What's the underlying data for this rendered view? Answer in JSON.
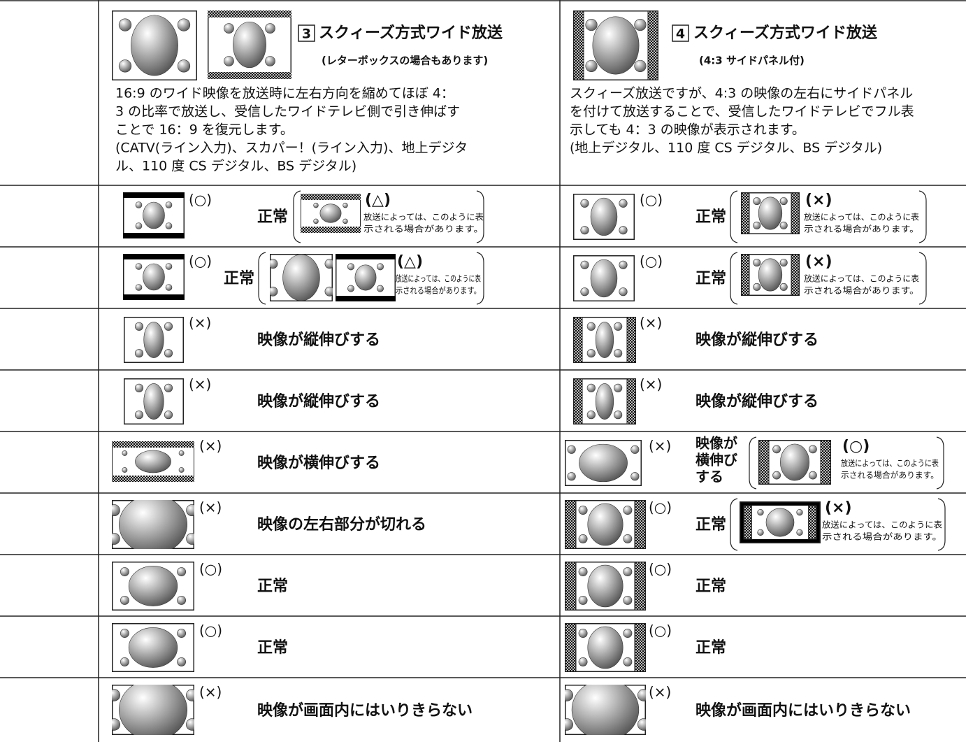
{
  "header": {
    "col3": {
      "number": "3",
      "title": "スクィーズ方式ワイド放送",
      "subtitle": "(レターボックスの場合もあります)",
      "description": [
        "16:9 のワイド映像を放送時に左右方向を縮めてほぼ 4：",
        "3 の比率で放送し、受信したワイドテレビ側で引き伸ばす",
        "ことで 16：9 を復元します。",
        "(CATV(ライン入力)、スカパー！(ライン入力)、地上デジタ",
        "ル、110 度 CS デジタル、BS デジタル)"
      ]
    },
    "col4": {
      "number": "4",
      "title": "スクィーズ方式ワイド放送",
      "subtitle": "(4:3 サイドパネル付)",
      "description": [
        "スクィーズ放送ですが、4:3 の映像の左右にサイドパネル",
        "を付けて放送することで、受信したワイドテレビでフル表",
        "示しても 4：3 の映像が表示されます。",
        "(地上デジタル、110 度 CS デジタル、BS デジタル)"
      ]
    }
  },
  "rows": [
    {
      "col3": {
        "mark": "(○)",
        "text": [
          "正常"
        ],
        "alt": {
          "mark": "(△)",
          "note": [
            "放送によっては、このように表",
            "示される場合があります。"
          ]
        }
      },
      "col4": {
        "mark": "(○)",
        "text": [
          "正常"
        ],
        "alt": {
          "mark": "(×)",
          "note": [
            "放送によっては、このように表",
            "示される場合があります。"
          ]
        }
      }
    },
    {
      "col3": {
        "mark": "(○)",
        "text": [
          "正常"
        ],
        "alt": {
          "mark": "(△)",
          "note": [
            "放送によっては、このように表",
            "示される場合があります。"
          ]
        }
      },
      "col4": {
        "mark": "(○)",
        "text": [
          "正常"
        ],
        "alt": {
          "mark": "(×)",
          "note": [
            "放送によっては、このように表",
            "示される場合があります。"
          ]
        }
      }
    },
    {
      "col3": {
        "mark": "(×)",
        "text": [
          "映像が縦伸びする"
        ]
      },
      "col4": {
        "mark": "(×)",
        "text": [
          "映像が縦伸びする"
        ]
      }
    },
    {
      "col3": {
        "mark": "(×)",
        "text": [
          "映像が縦伸びする"
        ]
      },
      "col4": {
        "mark": "(×)",
        "text": [
          "映像が縦伸びする"
        ]
      }
    },
    {
      "col3": {
        "mark": "(×)",
        "text": [
          "映像が横伸びする"
        ]
      },
      "col4": {
        "mark": "(×)",
        "text": [
          "映像が",
          "横伸び",
          "する"
        ],
        "alt": {
          "mark": "(○)",
          "note": [
            "放送によっては、このように表",
            "示される場合があります。"
          ]
        }
      }
    },
    {
      "col3": {
        "mark": "(×)",
        "text": [
          "映像の左右部分が切れる"
        ]
      },
      "col4": {
        "mark": "(○)",
        "text": [
          "正常"
        ],
        "alt": {
          "mark": "(×)",
          "note": [
            "放送によっては、このように表",
            "示される場合があります。"
          ]
        }
      }
    },
    {
      "col3": {
        "mark": "(○)",
        "text": [
          "正常"
        ]
      },
      "col4": {
        "mark": "(○)",
        "text": [
          "正常"
        ]
      }
    },
    {
      "col3": {
        "mark": "(○)",
        "text": [
          "正常"
        ]
      },
      "col4": {
        "mark": "(○)",
        "text": [
          "正常"
        ]
      }
    },
    {
      "col3": {
        "mark": "(×)",
        "text": [
          "映像が画面内にはいりきらない"
        ]
      },
      "col4": {
        "mark": "(×)",
        "text": [
          "映像が画面内にはいりきらない"
        ]
      }
    }
  ]
}
